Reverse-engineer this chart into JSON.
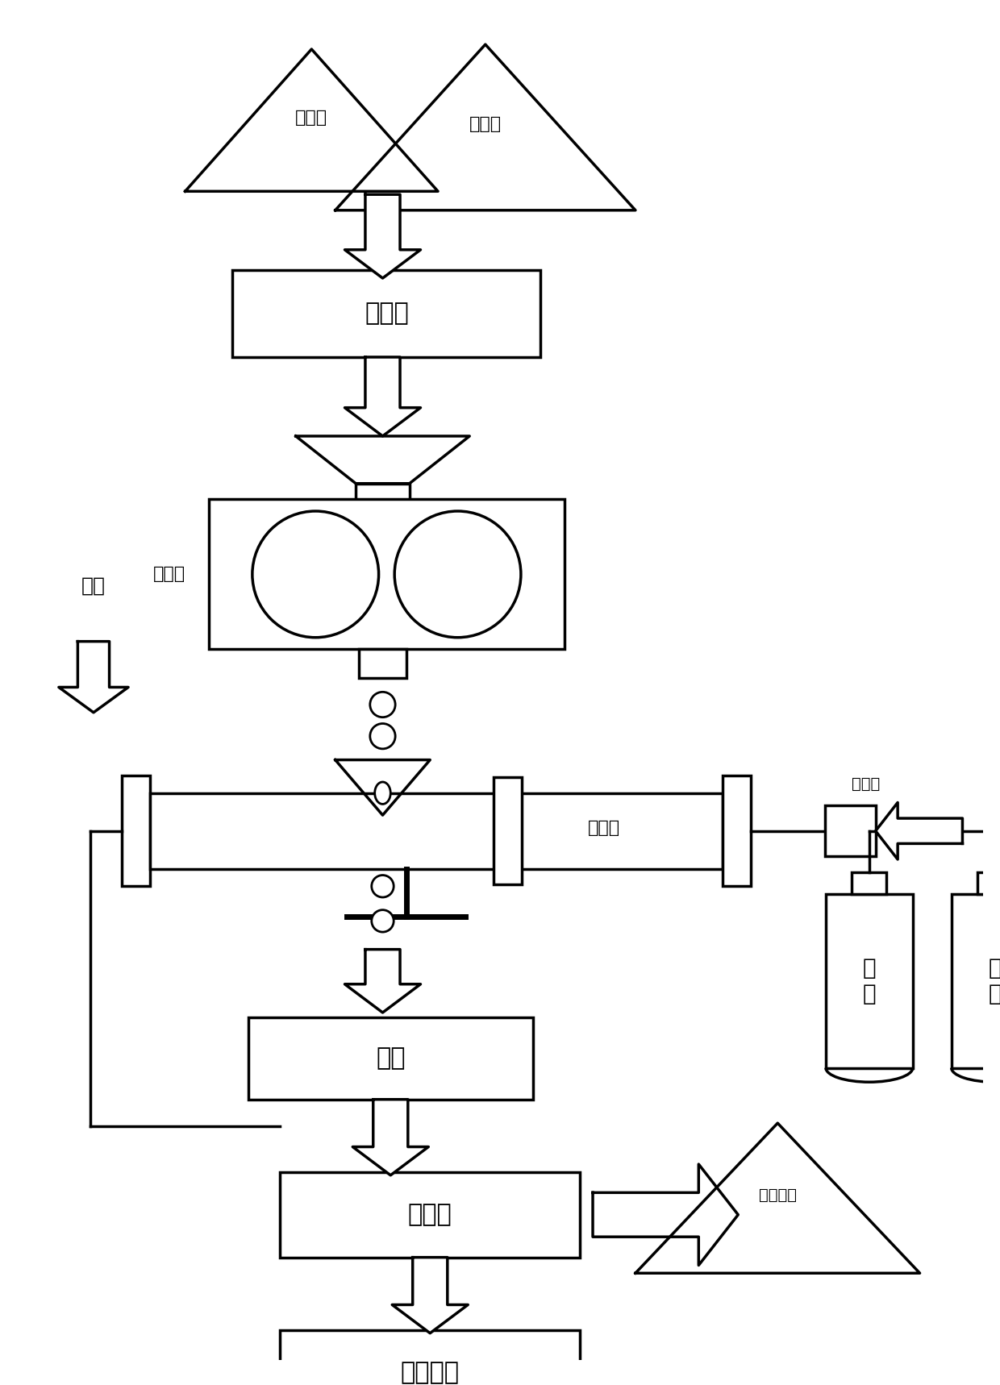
{
  "bg_color": "#ffffff",
  "line_color": "#000000",
  "figsize": [
    12.4,
    17.18
  ],
  "dpi": 100,
  "labels": {
    "titanium": "钛白粉",
    "reductant": "还原剂",
    "mixer": "搅拌器",
    "press_label": "压球机",
    "kiln": "回转窑",
    "buffer": "缓冲罐",
    "hydrogen": "氢\n气",
    "argon_cyl": "氩\n气",
    "argon_left": "氩气",
    "argon_arrow": "↓",
    "grinding": "研磨",
    "heat": "热处理",
    "product": "亚氧化钛",
    "exhaust": "尾气处理"
  },
  "font_size_large": 22,
  "font_size_med": 18,
  "font_size_small": 16,
  "lw": 2.5
}
